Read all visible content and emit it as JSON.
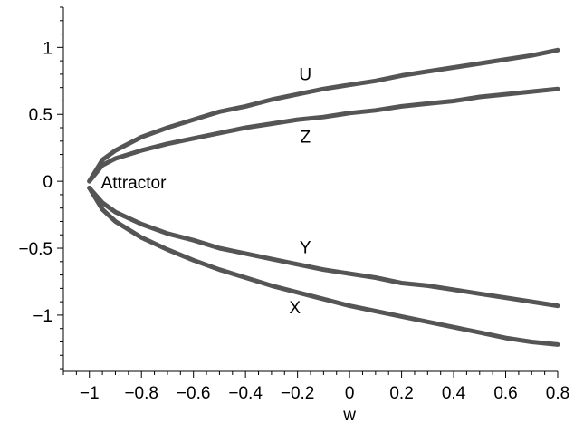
{
  "chart_data": {
    "type": "line",
    "title": "",
    "xlabel": "w",
    "ylabel": "",
    "xlim": [
      -1.1,
      0.8
    ],
    "ylim": [
      -1.42,
      1.3
    ],
    "grid": false,
    "legend": "none",
    "line_color": "#555555",
    "x_ticks": [
      {
        "value": -1,
        "label": "−1"
      },
      {
        "value": -0.8,
        "label": "−0.8"
      },
      {
        "value": -0.6,
        "label": "−0.6"
      },
      {
        "value": -0.4,
        "label": "−0.4"
      },
      {
        "value": -0.2,
        "label": "−0.2"
      },
      {
        "value": 0,
        "label": "0"
      },
      {
        "value": 0.2,
        "label": "0.2"
      },
      {
        "value": 0.4,
        "label": "0.4"
      },
      {
        "value": 0.6,
        "label": "0.6"
      },
      {
        "value": 0.8,
        "label": "0.8"
      }
    ],
    "y_ticks": [
      {
        "value": 1,
        "label": "1"
      },
      {
        "value": 0.5,
        "label": "0.5"
      },
      {
        "value": 0,
        "label": "0"
      },
      {
        "value": -0.5,
        "label": "−0.5"
      },
      {
        "value": -1,
        "label": "−1"
      }
    ],
    "x": [
      -1.0,
      -0.95,
      -0.9,
      -0.8,
      -0.7,
      -0.6,
      -0.5,
      -0.4,
      -0.3,
      -0.2,
      -0.1,
      0.0,
      0.1,
      0.2,
      0.3,
      0.4,
      0.5,
      0.6,
      0.7,
      0.8
    ],
    "series": [
      {
        "name": "U",
        "values": [
          0.0,
          0.16,
          0.23,
          0.33,
          0.4,
          0.46,
          0.52,
          0.56,
          0.61,
          0.65,
          0.69,
          0.72,
          0.75,
          0.79,
          0.82,
          0.85,
          0.88,
          0.91,
          0.94,
          0.98
        ]
      },
      {
        "name": "Z",
        "values": [
          0.0,
          0.12,
          0.17,
          0.23,
          0.28,
          0.32,
          0.36,
          0.4,
          0.43,
          0.46,
          0.48,
          0.51,
          0.53,
          0.56,
          0.58,
          0.6,
          0.63,
          0.65,
          0.67,
          0.69
        ]
      },
      {
        "name": "Y",
        "values": [
          -0.05,
          -0.16,
          -0.23,
          -0.32,
          -0.39,
          -0.44,
          -0.5,
          -0.54,
          -0.58,
          -0.62,
          -0.66,
          -0.69,
          -0.72,
          -0.76,
          -0.78,
          -0.81,
          -0.84,
          -0.87,
          -0.9,
          -0.93
        ]
      },
      {
        "name": "X",
        "values": [
          -0.05,
          -0.21,
          -0.3,
          -0.42,
          -0.51,
          -0.59,
          -0.66,
          -0.72,
          -0.78,
          -0.83,
          -0.88,
          -0.93,
          -0.97,
          -1.01,
          -1.05,
          -1.09,
          -1.13,
          -1.17,
          -1.2,
          -1.22
        ]
      }
    ],
    "annotations": [
      {
        "text": "Attractor",
        "x": -0.99,
        "y": 0.0
      }
    ]
  }
}
